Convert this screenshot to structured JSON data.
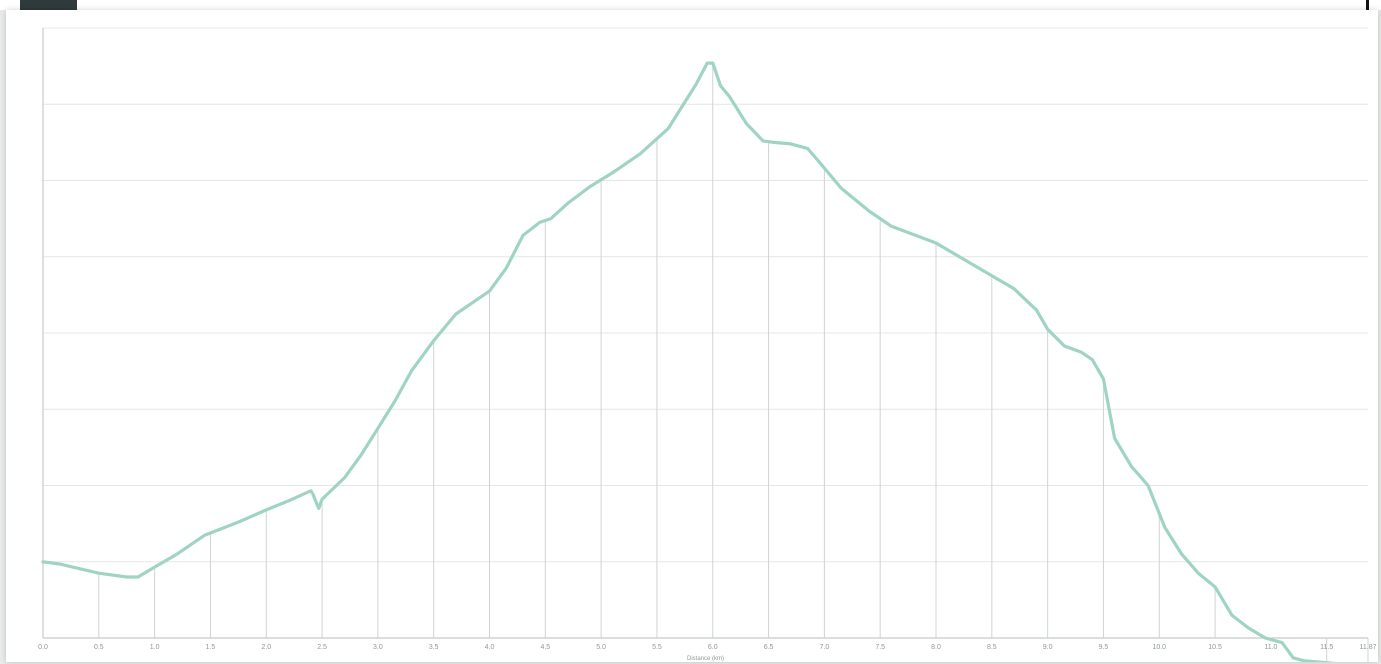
{
  "chart_data": {
    "type": "line",
    "title": "",
    "xlabel": "Distance (km)",
    "ylabel": "",
    "xlim": [
      0,
      11.87
    ],
    "ylim": [
      1900,
      2700
    ],
    "x_tick_labels": [
      "0.0",
      "0.5",
      "1.0",
      "1.5",
      "2.0",
      "2.5",
      "3.0",
      "3.5",
      "4.0",
      "4.5",
      "5.0",
      "5.5",
      "6.0",
      "6.5",
      "7.0",
      "7.5",
      "8.0",
      "8.5",
      "9.0",
      "9.5",
      "10.0",
      "10.5",
      "11.0",
      "11.5",
      "11.87"
    ],
    "x_ticks": [
      0,
      0.5,
      1,
      1.5,
      2,
      2.5,
      3,
      3.5,
      4,
      4.5,
      5,
      5.5,
      6,
      6.5,
      7,
      7.5,
      8,
      8.5,
      9,
      9.5,
      10,
      10.5,
      11,
      11.5,
      11.87
    ],
    "y_ticks": [
      1900,
      2000,
      2100,
      2200,
      2300,
      2400,
      2500,
      2600,
      2700
    ],
    "grid": true,
    "line_color": "#9fd4c3",
    "series": [
      {
        "x": [
          0,
          0.15,
          0.5,
          0.75,
          0.85,
          1.0,
          1.2,
          1.45,
          1.75,
          2.0,
          2.2,
          2.4,
          2.42,
          2.47,
          2.5,
          2.7,
          2.85,
          3.0,
          3.15,
          3.3,
          3.5,
          3.7,
          4.0,
          4.15,
          4.3,
          4.45,
          4.55,
          4.7,
          4.9,
          5.1,
          5.35,
          5.6,
          5.85,
          5.95,
          6.0,
          6.07,
          6.15,
          6.3,
          6.45,
          6.55,
          6.7,
          6.85,
          6.95,
          7.15,
          7.4,
          7.6,
          8.0,
          8.5,
          8.7,
          8.9,
          9.0,
          9.15,
          9.3,
          9.4,
          9.5,
          9.6,
          9.75,
          9.9,
          10.05,
          10.2,
          10.35,
          10.5,
          10.65,
          10.8,
          10.95,
          11.1,
          11.2,
          11.3,
          11.87
        ],
        "y": [
          2000,
          1997,
          1985,
          1980,
          1980,
          1993,
          2010,
          2035,
          2052,
          2068,
          2080,
          2093,
          2088,
          2070,
          2082,
          2110,
          2140,
          2175,
          2210,
          2250,
          2290,
          2325,
          2355,
          2385,
          2428,
          2445,
          2450,
          2470,
          2492,
          2510,
          2535,
          2568,
          2626,
          2654,
          2654,
          2624,
          2610,
          2575,
          2552,
          2550,
          2548,
          2542,
          2525,
          2490,
          2460,
          2440,
          2418,
          2375,
          2358,
          2330,
          2305,
          2283,
          2275,
          2265,
          2240,
          2162,
          2125,
          2100,
          2045,
          2010,
          1985,
          1967,
          1930,
          1913,
          1900,
          1894,
          1874,
          1870,
          1863
        ]
      }
    ]
  },
  "colors": {
    "line": "#9fd4c3",
    "grid": "#d4d9d7",
    "tick_text": "#8e9896",
    "top_block": "#2f3a3c"
  }
}
